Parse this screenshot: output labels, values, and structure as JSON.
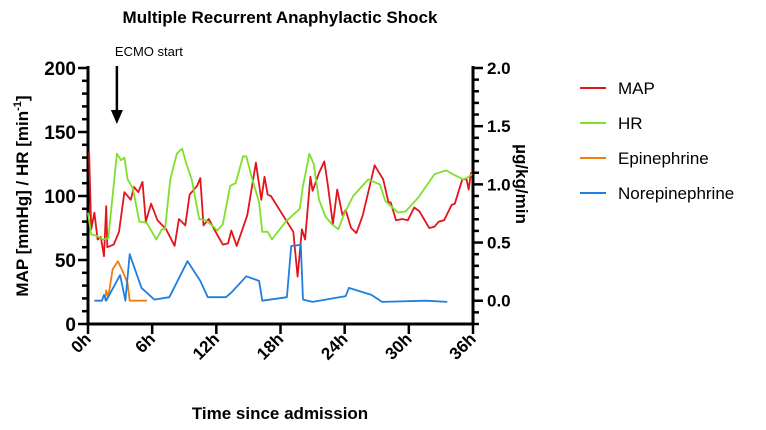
{
  "chart_data": {
    "type": "line",
    "title": "Multiple Recurrent Anaphylactic Shock",
    "xlabel": "Time since admission",
    "ylabel_left": "MAP [mmHg] / HR [min",
    "ylabel_left_sup": "-1",
    "ylabel_left_close": "]",
    "ylabel_right": "µg/kg/min",
    "xlim": [
      0,
      36
    ],
    "ylim_left": [
      0,
      200
    ],
    "ylim_right": [
      -0.2,
      2.0
    ],
    "x_ticks": [
      "0h",
      "6h",
      "12h",
      "18h",
      "24h",
      "30h",
      "36h"
    ],
    "x_tick_values": [
      0,
      6,
      12,
      18,
      24,
      30,
      36
    ],
    "y_left_ticks": [
      "0",
      "50",
      "100",
      "150",
      "200"
    ],
    "y_left_tick_values": [
      0,
      50,
      100,
      150,
      200
    ],
    "y_right_ticks": [
      "0.0",
      "0.5",
      "1.0",
      "1.5",
      "2.0"
    ],
    "y_right_tick_values": [
      0,
      0.5,
      1.0,
      1.5,
      2.0
    ],
    "grid": false,
    "legend_placement": "right",
    "annotation": {
      "label": "ECMO start",
      "x": 2.7
    },
    "series": [
      {
        "name": "MAP",
        "axis": "left",
        "color": "#e3141c",
        "points": [
          [
            0.1,
            134
          ],
          [
            0.3,
            74
          ],
          [
            0.6,
            87
          ],
          [
            0.9,
            66
          ],
          [
            1.2,
            68
          ],
          [
            1.5,
            53
          ],
          [
            1.7,
            92
          ],
          [
            1.8,
            60
          ],
          [
            2.4,
            62
          ],
          [
            2.9,
            72
          ],
          [
            3.4,
            103
          ],
          [
            4.0,
            97
          ],
          [
            4.3,
            107
          ],
          [
            4.7,
            103
          ],
          [
            5.1,
            111
          ],
          [
            5.4,
            80
          ],
          [
            5.9,
            94
          ],
          [
            6.5,
            81
          ],
          [
            7.3,
            74
          ],
          [
            8.1,
            61
          ],
          [
            8.5,
            82
          ],
          [
            9.1,
            77
          ],
          [
            9.5,
            101
          ],
          [
            10.2,
            108
          ],
          [
            10.5,
            114
          ],
          [
            10.8,
            77
          ],
          [
            11.3,
            82
          ],
          [
            11.8,
            74
          ],
          [
            12.6,
            62
          ],
          [
            13.1,
            63
          ],
          [
            13.4,
            73
          ],
          [
            13.9,
            61
          ],
          [
            14.9,
            85
          ],
          [
            15.7,
            126
          ],
          [
            16.2,
            97
          ],
          [
            16.5,
            115
          ],
          [
            16.8,
            101
          ],
          [
            17.1,
            100
          ],
          [
            19.2,
            72
          ],
          [
            19.6,
            37
          ],
          [
            20.0,
            74
          ],
          [
            20.3,
            66
          ],
          [
            20.8,
            115
          ],
          [
            21.0,
            104
          ],
          [
            21.6,
            118
          ],
          [
            22.1,
            127
          ],
          [
            22.4,
            110
          ],
          [
            22.9,
            78
          ],
          [
            23.3,
            105
          ],
          [
            23.8,
            85
          ],
          [
            24.1,
            89
          ],
          [
            24.6,
            75
          ],
          [
            25.1,
            71
          ],
          [
            25.7,
            85
          ],
          [
            26.8,
            124
          ],
          [
            27.6,
            113
          ],
          [
            28.1,
            95
          ],
          [
            28.3,
            95
          ],
          [
            28.8,
            81
          ],
          [
            29.4,
            82
          ],
          [
            29.9,
            81
          ],
          [
            30.5,
            91
          ],
          [
            31.0,
            88
          ],
          [
            31.9,
            75
          ],
          [
            32.4,
            76
          ],
          [
            32.8,
            80
          ],
          [
            33.3,
            81
          ],
          [
            34.0,
            93
          ],
          [
            34.3,
            94
          ],
          [
            35.0,
            113
          ],
          [
            35.4,
            113
          ],
          [
            35.6,
            105
          ],
          [
            35.8,
            118
          ],
          [
            35.9,
            116
          ]
        ]
      },
      {
        "name": "HR",
        "axis": "left",
        "color": "#7fe02c",
        "points": [
          [
            0.0,
            87
          ],
          [
            0.3,
            70
          ],
          [
            0.8,
            69
          ],
          [
            1.4,
            66
          ],
          [
            1.9,
            67
          ],
          [
            2.7,
            133
          ],
          [
            3.1,
            128
          ],
          [
            3.4,
            130
          ],
          [
            3.7,
            113
          ],
          [
            4.2,
            106
          ],
          [
            4.8,
            80
          ],
          [
            5.5,
            79
          ],
          [
            6.4,
            66
          ],
          [
            6.9,
            74
          ],
          [
            7.2,
            74
          ],
          [
            7.7,
            113
          ],
          [
            8.3,
            133
          ],
          [
            8.8,
            137
          ],
          [
            9.2,
            125
          ],
          [
            9.7,
            113
          ],
          [
            10.4,
            82
          ],
          [
            11.0,
            81
          ],
          [
            11.6,
            77
          ],
          [
            12.1,
            73
          ],
          [
            12.6,
            78
          ],
          [
            13.3,
            108
          ],
          [
            13.8,
            110
          ],
          [
            14.5,
            131
          ],
          [
            14.8,
            131
          ],
          [
            15.3,
            115
          ],
          [
            16.0,
            95
          ],
          [
            16.3,
            72
          ],
          [
            16.8,
            72
          ],
          [
            17.2,
            66
          ],
          [
            18.5,
            80
          ],
          [
            19.8,
            90
          ],
          [
            20.1,
            108
          ],
          [
            20.7,
            133
          ],
          [
            21.1,
            125
          ],
          [
            21.6,
            97
          ],
          [
            22.2,
            84
          ],
          [
            22.8,
            78
          ],
          [
            23.4,
            74
          ],
          [
            23.9,
            85
          ],
          [
            24.8,
            100
          ],
          [
            26.2,
            113
          ],
          [
            27.3,
            109
          ],
          [
            27.8,
            96
          ],
          [
            29.0,
            87
          ],
          [
            29.7,
            88
          ],
          [
            30.9,
            99
          ],
          [
            32.4,
            117
          ],
          [
            33.1,
            119
          ],
          [
            33.5,
            120
          ],
          [
            34.1,
            117
          ],
          [
            35.1,
            113
          ],
          [
            35.6,
            115
          ],
          [
            35.9,
            117
          ]
        ]
      },
      {
        "name": "Epinephrine",
        "axis": "right",
        "color": "#f07d10",
        "points": [
          [
            1.6,
            0.0
          ],
          [
            1.7,
            0.09
          ],
          [
            1.9,
            0.03
          ],
          [
            2.3,
            0.27
          ],
          [
            2.8,
            0.34
          ],
          [
            3.3,
            0.24
          ],
          [
            3.7,
            0.15
          ],
          [
            3.9,
            0.0
          ],
          [
            5.5,
            0.0
          ]
        ]
      },
      {
        "name": "Norepinephrine",
        "axis": "right",
        "color": "#1f7fe0",
        "points": [
          [
            0.6,
            0.0
          ],
          [
            1.3,
            0.0
          ],
          [
            1.5,
            0.05
          ],
          [
            1.7,
            0.0
          ],
          [
            3.0,
            0.22
          ],
          [
            3.5,
            0.0
          ],
          [
            3.9,
            0.4
          ],
          [
            5.0,
            0.11
          ],
          [
            6.2,
            0.01
          ],
          [
            7.6,
            0.03
          ],
          [
            8.1,
            0.12
          ],
          [
            9.3,
            0.34
          ],
          [
            10.5,
            0.17
          ],
          [
            11.2,
            0.03
          ],
          [
            12.9,
            0.03
          ],
          [
            13.4,
            0.07
          ],
          [
            14.8,
            0.21
          ],
          [
            16.0,
            0.17
          ],
          [
            16.3,
            0.0
          ],
          [
            18.6,
            0.03
          ],
          [
            19.0,
            0.47
          ],
          [
            19.9,
            0.48
          ],
          [
            20.1,
            0.01
          ],
          [
            21.0,
            -0.01
          ],
          [
            24.1,
            0.04
          ],
          [
            24.4,
            0.11
          ],
          [
            26.5,
            0.05
          ],
          [
            27.5,
            -0.01
          ],
          [
            31.6,
            0.0
          ],
          [
            33.6,
            -0.01
          ]
        ]
      }
    ]
  }
}
